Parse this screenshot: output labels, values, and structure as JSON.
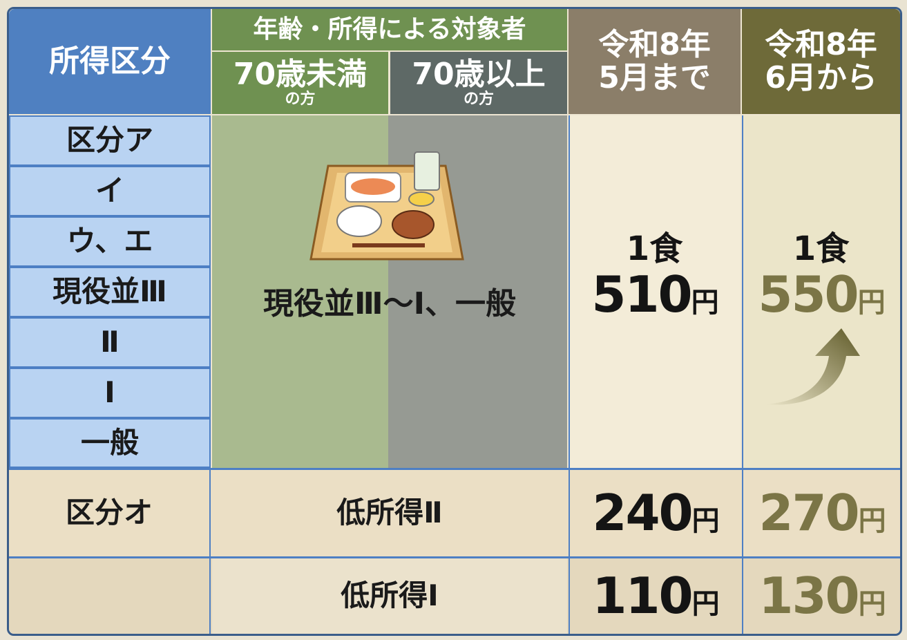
{
  "header": {
    "income_class": "所得区分",
    "target_group": "年齢・所得による対象者",
    "under70": {
      "label": "70歳未満",
      "suffix": "の方"
    },
    "over70": {
      "label": "70歳以上",
      "suffix": "の方"
    },
    "until": [
      "令和8年",
      "5月まで"
    ],
    "from": [
      "令和8年",
      "6月から"
    ]
  },
  "rows": [
    {
      "classes": [
        "区分ア",
        "イ",
        "ウ、エ",
        "現役並Ⅲ",
        "Ⅱ",
        "Ⅰ",
        "一般"
      ],
      "target": "現役並Ⅲ～Ⅰ、一般",
      "before": {
        "per": "1食",
        "amount": 510,
        "unit": "円"
      },
      "after": {
        "per": "1食",
        "amount": 550,
        "unit": "円"
      }
    },
    {
      "classes": [
        "区分オ"
      ],
      "target": "低所得Ⅱ",
      "before": {
        "amount": 240,
        "unit": "円"
      },
      "after": {
        "amount": 270,
        "unit": "円"
      }
    },
    {
      "target": "低所得Ⅰ",
      "before": {
        "amount": 110,
        "unit": "円"
      },
      "after": {
        "amount": 130,
        "unit": "円"
      }
    }
  ]
}
